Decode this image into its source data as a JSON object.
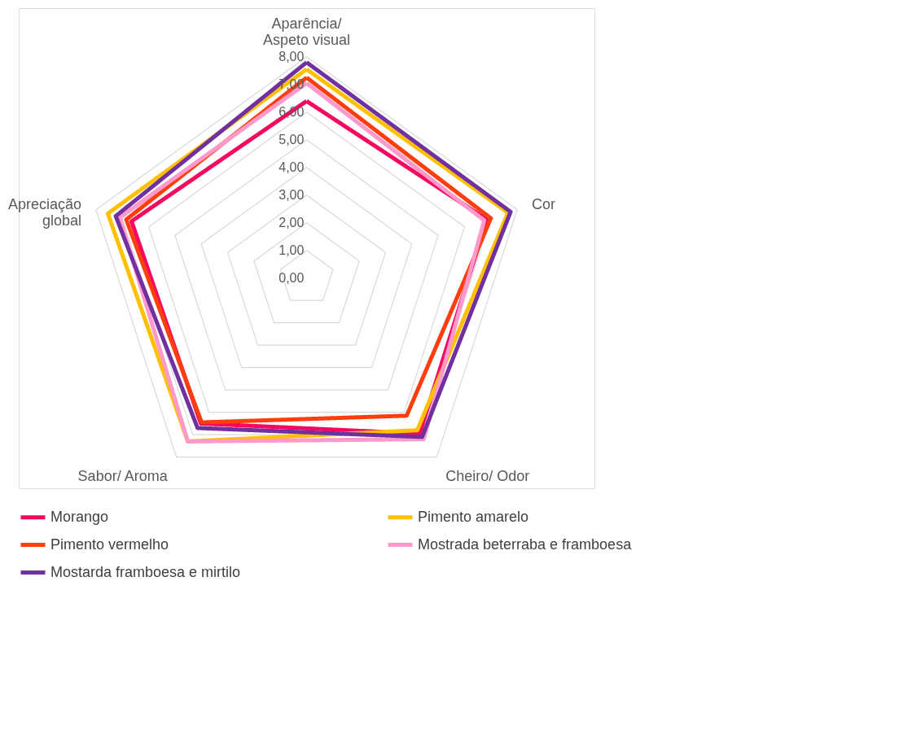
{
  "chart_data": {
    "type": "radar",
    "categories": [
      "Aparência/\nAspeto visual",
      "Cor",
      "Cheiro/ Odor",
      "Sabor/ Aroma",
      "Apreciação\nglobal"
    ],
    "series": [
      {
        "name": "Morango",
        "color": "#f5095f",
        "values": [
          6.4,
          6.85,
          6.95,
          6.5,
          6.65
        ]
      },
      {
        "name": "Pimento amarelo",
        "color": "#ffc000",
        "values": [
          7.55,
          7.65,
          6.8,
          7.3,
          7.55
        ]
      },
      {
        "name": "Pimento vermelho",
        "color": "#ff3d0d",
        "values": [
          7.25,
          7.0,
          6.15,
          6.45,
          6.85
        ]
      },
      {
        "name": "Mostrada beterraba e framboesa",
        "color": "#ff99cc",
        "values": [
          7.05,
          6.75,
          7.2,
          7.3,
          7.1
        ]
      },
      {
        "name": "Mostarda framboesa e mirtilo",
        "color": "#7030a0",
        "values": [
          7.8,
          7.75,
          7.1,
          6.7,
          7.25
        ]
      }
    ],
    "ylim": [
      0,
      8
    ],
    "yticks": [
      {
        "value": 0,
        "label": "0,00"
      },
      {
        "value": 1,
        "label": "1,00"
      },
      {
        "value": 2,
        "label": "2,00"
      },
      {
        "value": 3,
        "label": "3,00"
      },
      {
        "value": 4,
        "label": "4,00"
      },
      {
        "value": 5,
        "label": "5,00"
      },
      {
        "value": 6,
        "label": "6,00"
      },
      {
        "value": 7,
        "label": "7,00"
      },
      {
        "value": 8,
        "label": "8,00"
      }
    ],
    "grid": true,
    "legend": "bottom",
    "marker": "none",
    "line_style": "solid"
  }
}
